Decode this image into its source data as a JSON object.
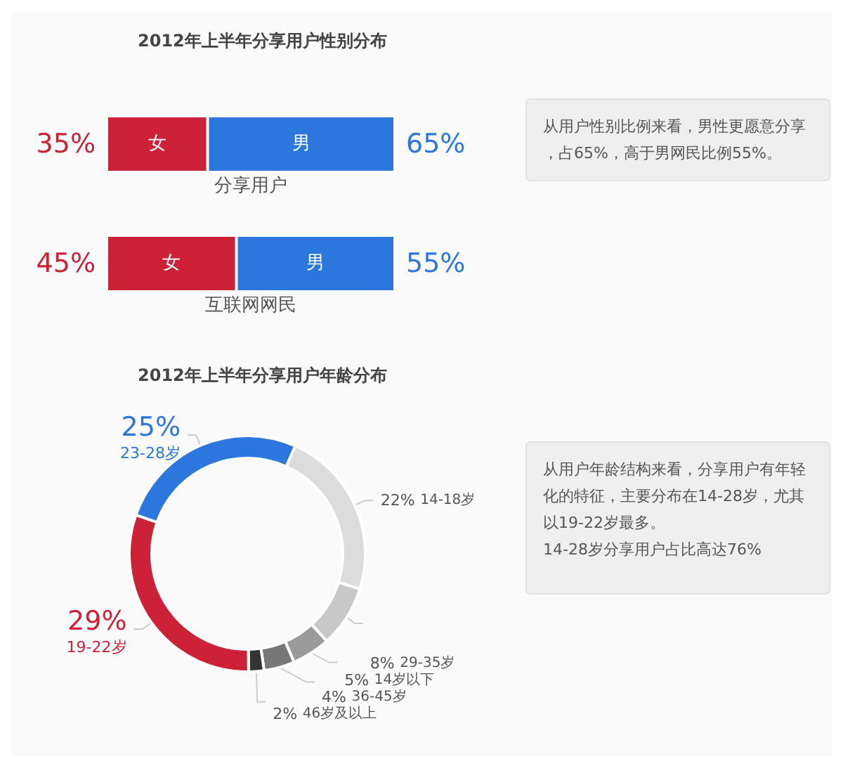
{
  "chart_data": [
    {
      "type": "bar",
      "title": "2012年上半年分享用户性别分布",
      "orientation": "horizontal",
      "stacked": true,
      "categories": [
        "分享用户",
        "互联网网民"
      ],
      "series": [
        {
          "name": "女",
          "color": "#cc2136",
          "values": [
            35,
            45
          ],
          "value_labels": [
            "35%",
            "45%"
          ]
        },
        {
          "name": "男",
          "color": "#2b77dd",
          "values": [
            65,
            55
          ],
          "value_labels": [
            "65%",
            "55%"
          ]
        }
      ],
      "annotations": [
        "从用户性别比例来看，男性更愿意分享，占65%，高于男网民比例55%。"
      ]
    },
    {
      "type": "donut",
      "title": "2012年上半年分享用户年龄分布",
      "categories": [
        "14-18岁",
        "29-35岁",
        "14岁以下",
        "36-45岁",
        "46岁及以上",
        "19-22岁",
        "23-28岁"
      ],
      "values": [
        22,
        8,
        5,
        4,
        2,
        29,
        25
      ],
      "colors": [
        "#dcdcdc",
        "#c8c8c8",
        "#9a9a9a",
        "#777777",
        "#333333",
        "#cc2136",
        "#2b77dd"
      ],
      "value_labels": [
        "22%",
        "8%",
        "5%",
        "4%",
        "2%",
        "29%",
        "25%"
      ],
      "annotations": [
        "从用户年龄结构来看，分享用户有年轻化的特征，主要分布在14-28岁，尤其以19-22岁最多。",
        "14-28岁分享用户占比高达76%"
      ]
    }
  ]
}
